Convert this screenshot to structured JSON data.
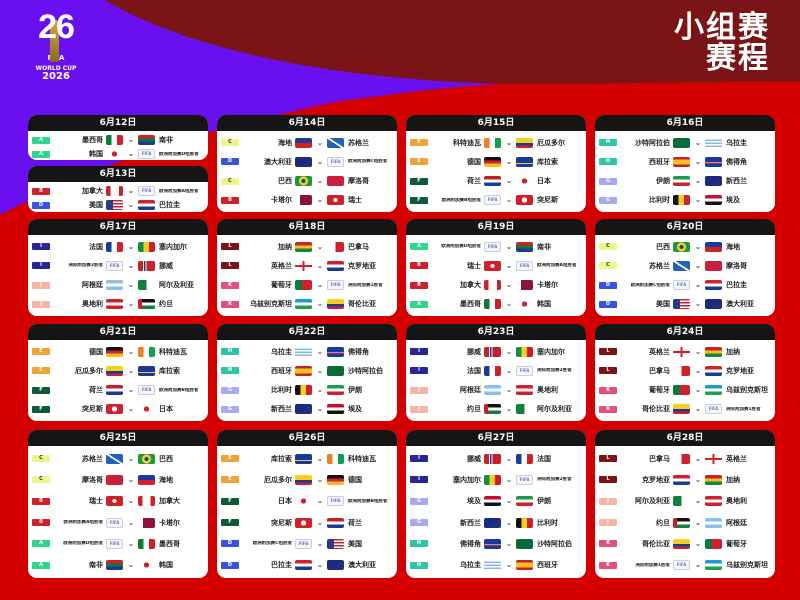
{
  "logo": {
    "number": "26",
    "fifa": "FIFA",
    "world_cup": "WORLD CUP",
    "year": "2026"
  },
  "title": {
    "line1": "小组赛",
    "line2": "赛程"
  },
  "colors": {
    "maroon": "#7a1416",
    "purple": "#6a10f0",
    "red": "#d40000",
    "card_header": "#151515"
  },
  "group_colors": {
    "A": "#2fd68c",
    "B": "#d0202a",
    "C": "#eef58a",
    "D": "#3a52e0",
    "E": "#f0a232",
    "F": "#0f5a38",
    "G": "#a9a9f2",
    "H": "#2fc4a8",
    "I": "#26259a",
    "J": "#f5b4a4",
    "K": "#e2507f",
    "L": "#7a1416"
  },
  "days": [
    {
      "date": "6月12日",
      "matches": [
        {
          "group": "A",
          "home": "墨西哥",
          "away": "南非"
        },
        {
          "group": "A",
          "home": "韩国",
          "away": "欧洲附加赛D组胜者"
        }
      ]
    },
    {
      "date": "6月13日",
      "matches": [
        {
          "group": "B",
          "home": "加拿大",
          "away": "欧洲附加赛A组胜者"
        },
        {
          "group": "D",
          "home": "美国",
          "away": "巴拉圭"
        }
      ]
    },
    {
      "date": "6月14日",
      "matches": [
        {
          "group": "C",
          "home": "海地",
          "away": "苏格兰"
        },
        {
          "group": "D",
          "home": "澳大利亚",
          "away": "欧洲附加赛C组胜者"
        },
        {
          "group": "C",
          "home": "巴西",
          "away": "摩洛哥"
        },
        {
          "group": "B",
          "home": "卡塔尔",
          "away": "瑞士"
        }
      ]
    },
    {
      "date": "6月15日",
      "matches": [
        {
          "group": "E",
          "home": "科特迪瓦",
          "away": "厄瓜多尔"
        },
        {
          "group": "E",
          "home": "德国",
          "away": "库拉索"
        },
        {
          "group": "F",
          "home": "荷兰",
          "away": "日本"
        },
        {
          "group": "F",
          "home": "欧洲附加赛B组胜者",
          "away": "突尼斯"
        }
      ]
    },
    {
      "date": "6月16日",
      "matches": [
        {
          "group": "H",
          "home": "沙特阿拉伯",
          "away": "乌拉圭"
        },
        {
          "group": "H",
          "home": "西班牙",
          "away": "佛得角"
        },
        {
          "group": "G",
          "home": "伊朗",
          "away": "新西兰"
        },
        {
          "group": "G",
          "home": "比利时",
          "away": "埃及"
        }
      ]
    },
    {
      "date": "6月17日",
      "matches": [
        {
          "group": "I",
          "home": "法国",
          "away": "塞内加尔"
        },
        {
          "group": "I",
          "home": "洲际附加赛2胜者",
          "away": "挪威"
        },
        {
          "group": "J",
          "home": "阿根廷",
          "away": "阿尔及利亚"
        },
        {
          "group": "J",
          "home": "奥地利",
          "away": "约旦"
        }
      ]
    },
    {
      "date": "6月18日",
      "matches": [
        {
          "group": "L",
          "home": "加纳",
          "away": "巴拿马"
        },
        {
          "group": "L",
          "home": "英格兰",
          "away": "克罗地亚"
        },
        {
          "group": "K",
          "home": "葡萄牙",
          "away": "洲际附加赛1胜者"
        },
        {
          "group": "K",
          "home": "乌兹别克斯坦",
          "away": "哥伦比亚"
        }
      ]
    },
    {
      "date": "6月19日",
      "matches": [
        {
          "group": "A",
          "home": "欧洲附加赛D组胜者",
          "away": "南非"
        },
        {
          "group": "B",
          "home": "瑞士",
          "away": "欧洲附加赛A组胜者"
        },
        {
          "group": "B",
          "home": "加拿大",
          "away": "卡塔尔"
        },
        {
          "group": "A",
          "home": "墨西哥",
          "away": "韩国"
        }
      ]
    },
    {
      "date": "6月20日",
      "matches": [
        {
          "group": "C",
          "home": "巴西",
          "away": "海地"
        },
        {
          "group": "C",
          "home": "苏格兰",
          "away": "摩洛哥"
        },
        {
          "group": "D",
          "home": "欧洲附加赛C组胜者",
          "away": "巴拉圭"
        },
        {
          "group": "D",
          "home": "美国",
          "away": "澳大利亚"
        }
      ]
    },
    {
      "date": "6月21日",
      "matches": [
        {
          "group": "E",
          "home": "德国",
          "away": "科特迪瓦"
        },
        {
          "group": "E",
          "home": "厄瓜多尔",
          "away": "库拉索"
        },
        {
          "group": "F",
          "home": "荷兰",
          "away": "欧洲附加赛B组胜者"
        },
        {
          "group": "F",
          "home": "突尼斯",
          "away": "日本"
        }
      ]
    },
    {
      "date": "6月22日",
      "matches": [
        {
          "group": "H",
          "home": "乌拉圭",
          "away": "佛得角"
        },
        {
          "group": "H",
          "home": "西班牙",
          "away": "沙特阿拉伯"
        },
        {
          "group": "G",
          "home": "比利时",
          "away": "伊朗"
        },
        {
          "group": "G",
          "home": "新西兰",
          "away": "埃及"
        }
      ]
    },
    {
      "date": "6月23日",
      "matches": [
        {
          "group": "I",
          "home": "挪威",
          "away": "塞内加尔"
        },
        {
          "group": "I",
          "home": "法国",
          "away": "洲际附加赛2胜者"
        },
        {
          "group": "J",
          "home": "阿根廷",
          "away": "奥地利"
        },
        {
          "group": "J",
          "home": "约旦",
          "away": "阿尔及利亚"
        }
      ]
    },
    {
      "date": "6月24日",
      "matches": [
        {
          "group": "L",
          "home": "英格兰",
          "away": "加纳"
        },
        {
          "group": "L",
          "home": "巴拿马",
          "away": "克罗地亚"
        },
        {
          "group": "K",
          "home": "葡萄牙",
          "away": "乌兹别克斯坦"
        },
        {
          "group": "K",
          "home": "哥伦比亚",
          "away": "洲际附加赛1胜者"
        }
      ]
    },
    {
      "date": "6月25日",
      "matches": [
        {
          "group": "C",
          "home": "苏格兰",
          "away": "巴西"
        },
        {
          "group": "C",
          "home": "摩洛哥",
          "away": "海地"
        },
        {
          "group": "B",
          "home": "瑞士",
          "away": "加拿大"
        },
        {
          "group": "B",
          "home": "欧洲附加赛A组胜者",
          "away": "卡塔尔"
        },
        {
          "group": "A",
          "home": "欧洲附加赛D组胜者",
          "away": "墨西哥"
        },
        {
          "group": "A",
          "home": "南非",
          "away": "韩国"
        }
      ]
    },
    {
      "date": "6月26日",
      "matches": [
        {
          "group": "E",
          "home": "库拉索",
          "away": "科特迪瓦"
        },
        {
          "group": "E",
          "home": "厄瓜多尔",
          "away": "德国"
        },
        {
          "group": "F",
          "home": "日本",
          "away": "欧洲附加赛B组胜者"
        },
        {
          "group": "F",
          "home": "突尼斯",
          "away": "荷兰"
        },
        {
          "group": "D",
          "home": "欧洲附加赛C组胜者",
          "away": "美国"
        },
        {
          "group": "D",
          "home": "巴拉圭",
          "away": "澳大利亚"
        }
      ]
    },
    {
      "date": "6月27日",
      "matches": [
        {
          "group": "I",
          "home": "挪威",
          "away": "法国"
        },
        {
          "group": "I",
          "home": "塞内加尔",
          "away": "洲际附加赛2胜者"
        },
        {
          "group": "G",
          "home": "埃及",
          "away": "伊朗"
        },
        {
          "group": "G",
          "home": "新西兰",
          "away": "比利时"
        },
        {
          "group": "H",
          "home": "佛得角",
          "away": "沙特阿拉伯"
        },
        {
          "group": "H",
          "home": "乌拉圭",
          "away": "西班牙"
        }
      ]
    },
    {
      "date": "6月28日",
      "matches": [
        {
          "group": "L",
          "home": "巴拿马",
          "away": "英格兰"
        },
        {
          "group": "L",
          "home": "克罗地亚",
          "away": "加纳"
        },
        {
          "group": "J",
          "home": "阿尔及利亚",
          "away": "奥地利"
        },
        {
          "group": "J",
          "home": "约旦",
          "away": "阿根廷"
        },
        {
          "group": "K",
          "home": "哥伦比亚",
          "away": "葡萄牙"
        },
        {
          "group": "K",
          "home": "洲际附加赛1胜者",
          "away": "乌兹别克斯坦"
        }
      ]
    }
  ]
}
